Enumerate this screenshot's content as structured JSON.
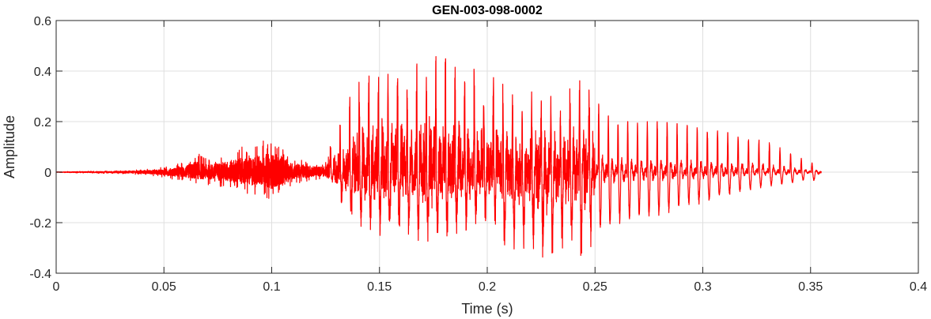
{
  "chart_data": {
    "type": "line",
    "title": "GEN-003-098-0002",
    "xlabel": "Time (s)",
    "ylabel": "Amplitude",
    "xlim": [
      0,
      0.4
    ],
    "ylim": [
      -0.4,
      0.6
    ],
    "xticks": [
      0,
      0.05,
      0.1,
      0.15,
      0.2,
      0.25,
      0.3,
      0.35,
      0.4
    ],
    "xtick_labels": [
      "0",
      "0.05",
      "0.1",
      "0.15",
      "0.2",
      "0.25",
      "0.3",
      "0.35",
      "0.4"
    ],
    "yticks": [
      -0.4,
      -0.2,
      0,
      0.2,
      0.4,
      0.6
    ],
    "ytick_labels": [
      "-0.4",
      "-0.2",
      "0",
      "0.2",
      "0.4",
      "0.6"
    ],
    "grid": true,
    "line_color": "#ff0000",
    "signal_end": 0.355,
    "envelope": {
      "t": [
        0,
        0.025,
        0.04,
        0.05,
        0.06,
        0.065,
        0.07,
        0.08,
        0.085,
        0.09,
        0.095,
        0.1,
        0.105,
        0.11,
        0.115,
        0.12,
        0.125,
        0.128,
        0.13,
        0.135,
        0.14,
        0.145,
        0.15,
        0.155,
        0.16,
        0.165,
        0.17,
        0.175,
        0.18,
        0.185,
        0.19,
        0.195,
        0.2,
        0.205,
        0.21,
        0.215,
        0.22,
        0.225,
        0.23,
        0.235,
        0.24,
        0.245,
        0.25,
        0.255,
        0.26,
        0.27,
        0.28,
        0.29,
        0.3,
        0.31,
        0.32,
        0.33,
        0.34,
        0.35,
        0.355
      ],
      "upper": [
        0.002,
        0.005,
        0.01,
        0.02,
        0.04,
        0.08,
        0.05,
        0.08,
        0.1,
        0.1,
        0.13,
        0.13,
        0.1,
        0.06,
        0.05,
        0.04,
        0.04,
        0.14,
        0.14,
        0.28,
        0.36,
        0.38,
        0.4,
        0.43,
        0.42,
        0.4,
        0.46,
        0.46,
        0.45,
        0.44,
        0.4,
        0.41,
        0.38,
        0.37,
        0.32,
        0.28,
        0.32,
        0.3,
        0.3,
        0.29,
        0.35,
        0.4,
        0.29,
        0.23,
        0.2,
        0.2,
        0.2,
        0.19,
        0.18,
        0.16,
        0.14,
        0.12,
        0.08,
        0.04,
        0.02
      ],
      "lower": [
        -0.002,
        -0.005,
        -0.01,
        -0.02,
        -0.04,
        -0.05,
        -0.05,
        -0.07,
        -0.08,
        -0.1,
        -0.09,
        -0.12,
        -0.08,
        -0.05,
        -0.04,
        -0.03,
        -0.03,
        -0.04,
        -0.12,
        -0.18,
        -0.2,
        -0.25,
        -0.25,
        -0.26,
        -0.26,
        -0.26,
        -0.28,
        -0.27,
        -0.25,
        -0.26,
        -0.23,
        -0.23,
        -0.2,
        -0.24,
        -0.32,
        -0.29,
        -0.32,
        -0.35,
        -0.32,
        -0.3,
        -0.3,
        -0.35,
        -0.26,
        -0.24,
        -0.21,
        -0.2,
        -0.18,
        -0.15,
        -0.13,
        -0.1,
        -0.08,
        -0.06,
        -0.05,
        -0.03,
        -0.05
      ]
    }
  }
}
